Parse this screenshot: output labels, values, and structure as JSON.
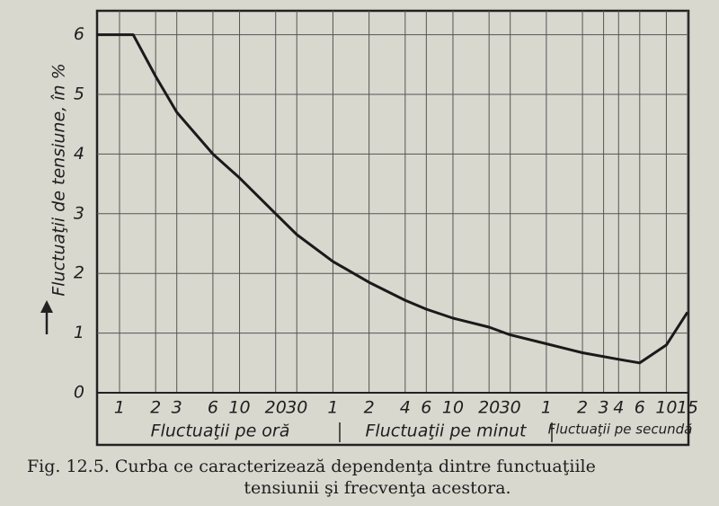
{
  "chart_data": {
    "type": "line",
    "ylabel": "Fluctuaţii de tensiune, în %",
    "x_group_labels": [
      "Fluctuaţii pe oră",
      "Fluctuaţii pe minut",
      "Fluctuaţii pe secundă"
    ],
    "caption": [
      "Fig. 12.5. Curba ce caracterizează dependenţa dintre functuaţiile",
      "tensiunii şi frecvenţa acestora."
    ],
    "x": [
      0.65,
      1.3,
      2,
      3,
      6,
      10,
      20,
      30,
      60,
      120,
      240,
      360,
      600,
      1200,
      1800,
      3600,
      7200,
      14400,
      21600,
      36000,
      54000
    ],
    "values": [
      6,
      6,
      5.3,
      4.7,
      4.0,
      3.6,
      3.0,
      2.65,
      2.2,
      1.85,
      1.55,
      1.4,
      1.25,
      1.1,
      0.97,
      0.82,
      0.67,
      0.56,
      0.5,
      0.8,
      1.35
    ],
    "color": "#1a1a1a",
    "xscale": "log",
    "xlim": [
      0.65,
      55000
    ],
    "ylim": [
      0,
      6.4
    ],
    "xticks": [
      {
        "value": 1,
        "label": "1"
      },
      {
        "value": 2,
        "label": "2"
      },
      {
        "value": 3,
        "label": "3"
      },
      {
        "value": 6,
        "label": "6"
      },
      {
        "value": 10,
        "label": "10"
      },
      {
        "value": 20,
        "label": "20"
      },
      {
        "value": 30,
        "label": "30"
      },
      {
        "value": 60,
        "label": "1"
      },
      {
        "value": 120,
        "label": "2"
      },
      {
        "value": 240,
        "label": "4"
      },
      {
        "value": 360,
        "label": "6"
      },
      {
        "value": 600,
        "label": "10"
      },
      {
        "value": 1200,
        "label": "20"
      },
      {
        "value": 1800,
        "label": "30"
      },
      {
        "value": 3600,
        "label": "1"
      },
      {
        "value": 7200,
        "label": "2"
      },
      {
        "value": 10800,
        "label": "3"
      },
      {
        "value": 14400,
        "label": "4"
      },
      {
        "value": 21600,
        "label": "6"
      },
      {
        "value": 36000,
        "label": "10"
      },
      {
        "value": 54000,
        "label": "15"
      }
    ],
    "yticks": [
      0,
      1,
      2,
      3,
      4,
      5,
      6
    ],
    "grid": true
  }
}
